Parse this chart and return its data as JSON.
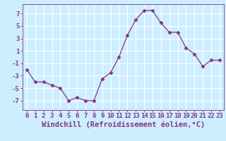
{
  "x": [
    0,
    1,
    2,
    3,
    4,
    5,
    6,
    7,
    8,
    9,
    10,
    11,
    12,
    13,
    14,
    15,
    16,
    17,
    18,
    19,
    20,
    21,
    22,
    23
  ],
  "y": [
    -2,
    -4,
    -4,
    -4.5,
    -5,
    -7,
    -6.5,
    -7,
    -7,
    -3.5,
    -2.5,
    0,
    3.5,
    6,
    7.5,
    7.5,
    5.5,
    4,
    4,
    1.5,
    0.5,
    -1.5,
    -0.5,
    -0.5
  ],
  "line_color": "#883388",
  "marker": "D",
  "marker_size": 2.5,
  "linewidth": 0.9,
  "bg_color": "#cceeff",
  "grid_color": "#ffffff",
  "xlabel": "Windchill (Refroidissement éolien,°C)",
  "xlabel_fontsize": 7.5,
  "yticks": [
    -7,
    -5,
    -3,
    -1,
    1,
    3,
    5,
    7
  ],
  "xtick_labels": [
    "0",
    "1",
    "2",
    "3",
    "4",
    "5",
    "6",
    "7",
    "8",
    "9",
    "10",
    "11",
    "12",
    "13",
    "14",
    "15",
    "16",
    "17",
    "18",
    "19",
    "20",
    "21",
    "22",
    "23"
  ],
  "ylim": [
    -8.5,
    8.5
  ],
  "xlim": [
    -0.5,
    23.5
  ],
  "tick_fontsize": 6.5,
  "tick_color": "#883388",
  "axis_color": "#883388"
}
